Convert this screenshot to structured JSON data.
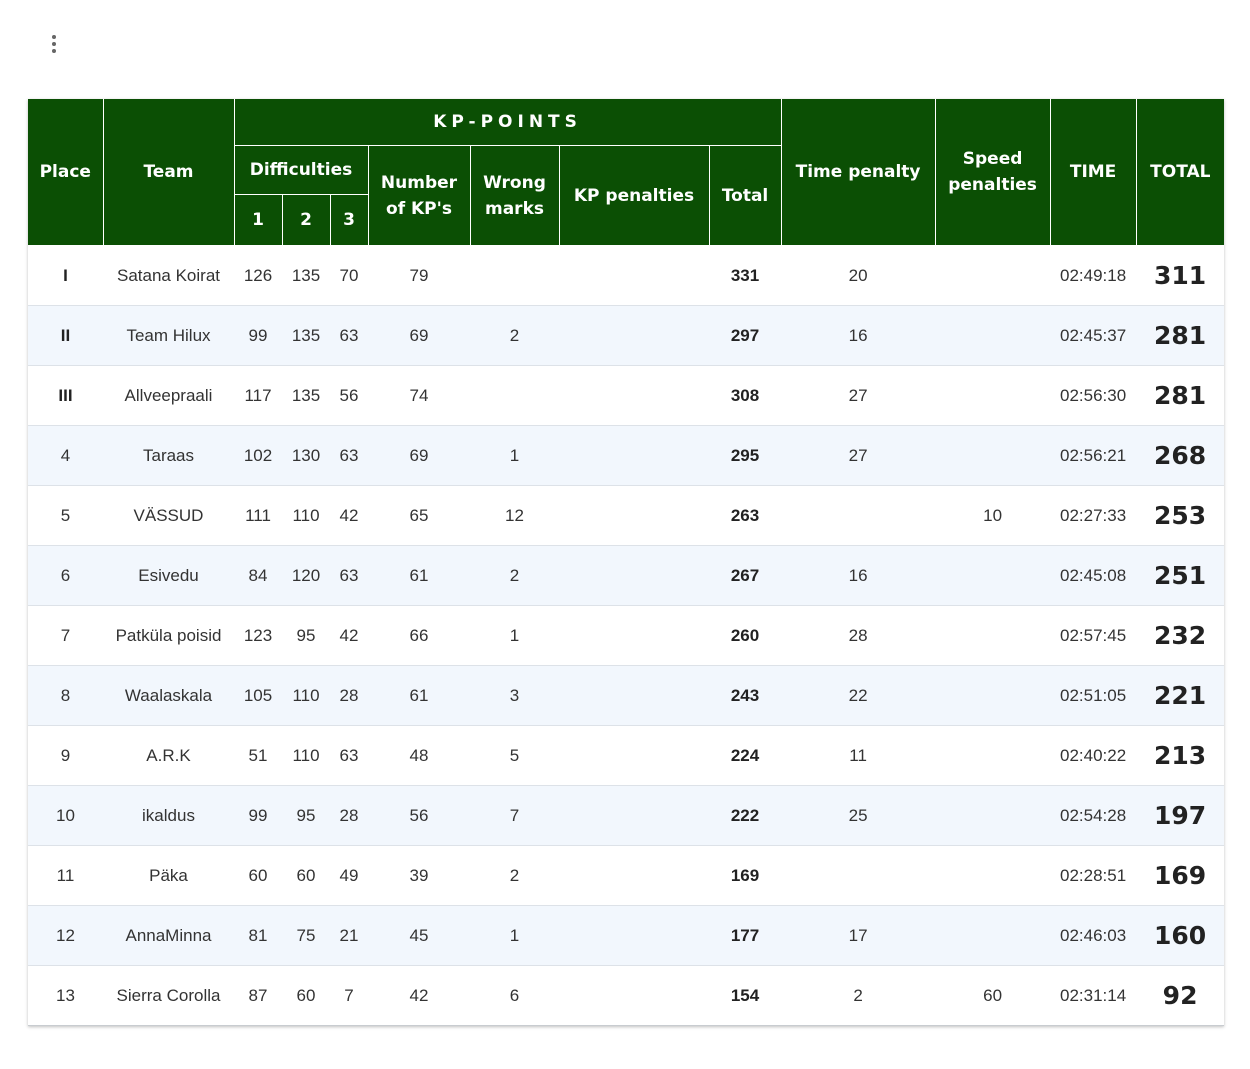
{
  "header": {
    "place": "Place",
    "team": "Team",
    "kp_points": "KP-POINTS",
    "difficulties": "Difficulties",
    "diff_cols": [
      "1",
      "2",
      "3"
    ],
    "number_of_kps": "Number of KP's",
    "wrong_marks": "Wrong marks",
    "kp_penalties": "KP penalties",
    "kp_total": "Total",
    "time_penalty": "Time penalty",
    "speed_penalties": "Speed penalties",
    "time": "TIME",
    "total": "TOTAL"
  },
  "rows": [
    {
      "place": "I",
      "team": "Satana Koirat",
      "d1": "126",
      "d2": "135",
      "d3": "70",
      "kps": "79",
      "wrong": "",
      "kp_pen": "",
      "kp_total": "331",
      "time_pen": "20",
      "speed_pen": "",
      "time": "02:49:18",
      "total": "311"
    },
    {
      "place": "II",
      "team": "Team Hilux",
      "d1": "99",
      "d2": "135",
      "d3": "63",
      "kps": "69",
      "wrong": "2",
      "kp_pen": "",
      "kp_total": "297",
      "time_pen": "16",
      "speed_pen": "",
      "time": "02:45:37",
      "total": "281"
    },
    {
      "place": "III",
      "team": "Allveepraali",
      "d1": "117",
      "d2": "135",
      "d3": "56",
      "kps": "74",
      "wrong": "",
      "kp_pen": "",
      "kp_total": "308",
      "time_pen": "27",
      "speed_pen": "",
      "time": "02:56:30",
      "total": "281"
    },
    {
      "place": "4",
      "team": "Taraas",
      "d1": "102",
      "d2": "130",
      "d3": "63",
      "kps": "69",
      "wrong": "1",
      "kp_pen": "",
      "kp_total": "295",
      "time_pen": "27",
      "speed_pen": "",
      "time": "02:56:21",
      "total": "268"
    },
    {
      "place": "5",
      "team": "VÄSSUD",
      "d1": "111",
      "d2": "110",
      "d3": "42",
      "kps": "65",
      "wrong": "12",
      "kp_pen": "",
      "kp_total": "263",
      "time_pen": "",
      "speed_pen": "10",
      "time": "02:27:33",
      "total": "253"
    },
    {
      "place": "6",
      "team": "Esivedu",
      "d1": "84",
      "d2": "120",
      "d3": "63",
      "kps": "61",
      "wrong": "2",
      "kp_pen": "",
      "kp_total": "267",
      "time_pen": "16",
      "speed_pen": "",
      "time": "02:45:08",
      "total": "251"
    },
    {
      "place": "7",
      "team": "Patküla poisid",
      "d1": "123",
      "d2": "95",
      "d3": "42",
      "kps": "66",
      "wrong": "1",
      "kp_pen": "",
      "kp_total": "260",
      "time_pen": "28",
      "speed_pen": "",
      "time": "02:57:45",
      "total": "232"
    },
    {
      "place": "8",
      "team": "Waalaskala",
      "d1": "105",
      "d2": "110",
      "d3": "28",
      "kps": "61",
      "wrong": "3",
      "kp_pen": "",
      "kp_total": "243",
      "time_pen": "22",
      "speed_pen": "",
      "time": "02:51:05",
      "total": "221"
    },
    {
      "place": "9",
      "team": "A.R.K",
      "d1": "51",
      "d2": "110",
      "d3": "63",
      "kps": "48",
      "wrong": "5",
      "kp_pen": "",
      "kp_total": "224",
      "time_pen": "11",
      "speed_pen": "",
      "time": "02:40:22",
      "total": "213"
    },
    {
      "place": "10",
      "team": "ikaldus",
      "d1": "99",
      "d2": "95",
      "d3": "28",
      "kps": "56",
      "wrong": "7",
      "kp_pen": "",
      "kp_total": "222",
      "time_pen": "25",
      "speed_pen": "",
      "time": "02:54:28",
      "total": "197"
    },
    {
      "place": "11",
      "team": "Päka",
      "d1": "60",
      "d2": "60",
      "d3": "49",
      "kps": "39",
      "wrong": "2",
      "kp_pen": "",
      "kp_total": "169",
      "time_pen": "",
      "speed_pen": "",
      "time": "02:28:51",
      "total": "169"
    },
    {
      "place": "12",
      "team": "AnnaMinna",
      "d1": "81",
      "d2": "75",
      "d3": "21",
      "kps": "45",
      "wrong": "1",
      "kp_pen": "",
      "kp_total": "177",
      "time_pen": "17",
      "speed_pen": "",
      "time": "02:46:03",
      "total": "160"
    },
    {
      "place": "13",
      "team": "Sierra Corolla",
      "d1": "87",
      "d2": "60",
      "d3": "7",
      "kps": "42",
      "wrong": "6",
      "kp_pen": "",
      "kp_total": "154",
      "time_pen": "2",
      "speed_pen": "60",
      "time": "02:31:14",
      "total": "92"
    }
  ],
  "colors": {
    "header_bg": "#0b4f04",
    "header_text": "#ffffff",
    "stripe": "#f2f7fd"
  }
}
